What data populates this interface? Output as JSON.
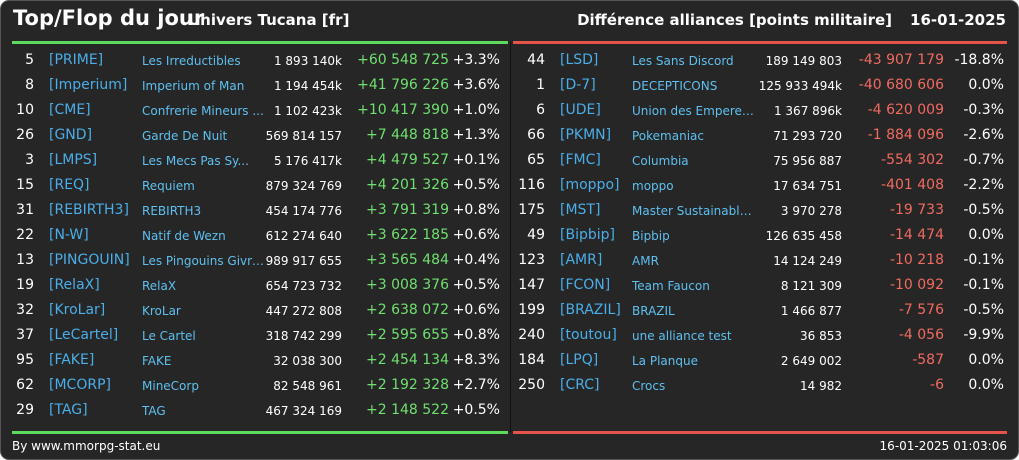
{
  "header": {
    "title": "Top/Flop du jour",
    "universe": "Univers Tucana [fr]",
    "subtitle": "Différence alliances [points militaire]",
    "date": "16-01-2025"
  },
  "colors": {
    "positive": "#6fe06f",
    "negative": "#f06a60",
    "tag": "#4aaee8",
    "name": "#5ec0f0"
  },
  "top": [
    {
      "rank": "5",
      "tag": "[PRIME]",
      "name": "Les Irreductibles",
      "points": "1 893 140k",
      "diff": "+60 548 725",
      "pct": "+3.3%"
    },
    {
      "rank": "8",
      "tag": "[Imperium]",
      "name": "Imperium of Man",
      "points": "1 194 454k",
      "diff": "+41 796 226",
      "pct": "+3.6%"
    },
    {
      "rank": "10",
      "tag": "[CME]",
      "name": "Confrerie Mineurs ...",
      "points": "1 102 423k",
      "diff": "+10 417 390",
      "pct": "+1.0%"
    },
    {
      "rank": "26",
      "tag": "[GND]",
      "name": "Garde De Nuit",
      "points": "569 814 157",
      "diff": "+7 448 818",
      "pct": "+1.3%"
    },
    {
      "rank": "3",
      "tag": "[LMPS]",
      "name": "Les Mecs Pas Sy...",
      "points": "5 176 417k",
      "diff": "+4 479 527",
      "pct": "+0.1%"
    },
    {
      "rank": "15",
      "tag": "[REQ]",
      "name": "Requiem",
      "points": "879 324 769",
      "diff": "+4 201 326",
      "pct": "+0.5%"
    },
    {
      "rank": "31",
      "tag": "[REBIRTH3]",
      "name": "REBIRTH3",
      "points": "454 174 776",
      "diff": "+3 791 319",
      "pct": "+0.8%"
    },
    {
      "rank": "22",
      "tag": "[N-W]",
      "name": "Natif de Wezn",
      "points": "612 274 640",
      "diff": "+3 622 185",
      "pct": "+0.6%"
    },
    {
      "rank": "13",
      "tag": "[PINGOUIN]",
      "name": "Les Pingouins Givre...",
      "points": "989 917 655",
      "diff": "+3 565 484",
      "pct": "+0.4%"
    },
    {
      "rank": "19",
      "tag": "[RelaX]",
      "name": "RelaX",
      "points": "654 723 732",
      "diff": "+3 008 376",
      "pct": "+0.5%"
    },
    {
      "rank": "32",
      "tag": "[KroLar]",
      "name": "KroLar",
      "points": "447 272 808",
      "diff": "+2 638 072",
      "pct": "+0.6%"
    },
    {
      "rank": "37",
      "tag": "[LeCartel]",
      "name": "Le Cartel",
      "points": "318 742 299",
      "diff": "+2 595 655",
      "pct": "+0.8%"
    },
    {
      "rank": "95",
      "tag": "[FAKE]",
      "name": "FAKE",
      "points": "32 038 300",
      "diff": "+2 454 134",
      "pct": "+8.3%"
    },
    {
      "rank": "62",
      "tag": "[MCORP]",
      "name": "MineCorp",
      "points": "82 548 961",
      "diff": "+2 192 328",
      "pct": "+2.7%"
    },
    {
      "rank": "29",
      "tag": "[TAG]",
      "name": "TAG",
      "points": "467 324 169",
      "diff": "+2 148 522",
      "pct": "+0.5%"
    }
  ],
  "flop": [
    {
      "rank": "44",
      "tag": "[LSD]",
      "name": "Les Sans Discord",
      "points": "189 149 803",
      "diff": "-43 907 179",
      "pct": "-18.8%"
    },
    {
      "rank": "1",
      "tag": "[D-7]",
      "name": "DECEPTICONS",
      "points": "125 933 494k",
      "diff": "-40 680 606",
      "pct": "0.0%"
    },
    {
      "rank": "6",
      "tag": "[UDE]",
      "name": "Union des Empereur...",
      "points": "1 367 896k",
      "diff": "-4 620 009",
      "pct": "-0.3%"
    },
    {
      "rank": "66",
      "tag": "[PKMN]",
      "name": "Pokemaniac",
      "points": "71 293 720",
      "diff": "-1 884 096",
      "pct": "-2.6%"
    },
    {
      "rank": "65",
      "tag": "[FMC]",
      "name": "Columbia",
      "points": "75 956 887",
      "diff": "-554 302",
      "pct": "-0.7%"
    },
    {
      "rank": "116",
      "tag": "[moppo]",
      "name": "moppo",
      "points": "17 634 751",
      "diff": "-401 408",
      "pct": "-2.2%"
    },
    {
      "rank": "175",
      "tag": "[MST]",
      "name": "Master Sustainable...",
      "points": "3 970 278",
      "diff": "-19 733",
      "pct": "-0.5%"
    },
    {
      "rank": "49",
      "tag": "[Bipbip]",
      "name": "Bipbip",
      "points": "126 635 458",
      "diff": "-14 474",
      "pct": "0.0%"
    },
    {
      "rank": "123",
      "tag": "[AMR]",
      "name": "AMR",
      "points": "14 124 249",
      "diff": "-10 218",
      "pct": "-0.1%"
    },
    {
      "rank": "147",
      "tag": "[FCON]",
      "name": "Team Faucon",
      "points": "8 121 309",
      "diff": "-10 092",
      "pct": "-0.1%"
    },
    {
      "rank": "199",
      "tag": "[BRAZIL]",
      "name": "BRAZIL",
      "points": "1 466 877",
      "diff": "-7 576",
      "pct": "-0.5%"
    },
    {
      "rank": "240",
      "tag": "[toutou]",
      "name": "une alliance test",
      "points": "36 853",
      "diff": "-4 056",
      "pct": "-9.9%"
    },
    {
      "rank": "184",
      "tag": "[LPQ]",
      "name": "La Planque",
      "points": "2 649 002",
      "diff": "-587",
      "pct": "0.0%"
    },
    {
      "rank": "250",
      "tag": "[CRC]",
      "name": "Crocs",
      "points": "14 982",
      "diff": "-6",
      "pct": "0.0%"
    }
  ],
  "footer": {
    "credit": "By www.mmorpg-stat.eu",
    "timestamp": "16-01-2025 01:03:06"
  }
}
